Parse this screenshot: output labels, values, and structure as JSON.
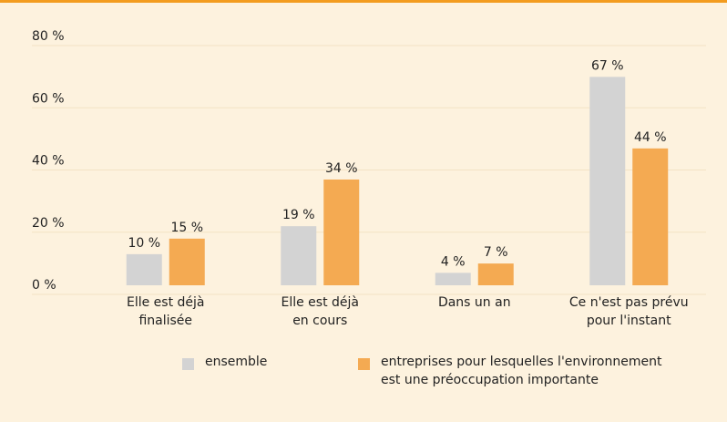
{
  "chart_data": {
    "type": "bar",
    "categories": [
      "Elle est déjà\nfinalisée",
      "Elle est déjà\nen cours",
      "Dans un an",
      "Ce n'est pas prévu\npour l'instant"
    ],
    "series": [
      {
        "name": "ensemble",
        "color": "#d3d3d3",
        "values": [
          10,
          19,
          4,
          67
        ],
        "value_labels": [
          "10 %",
          "19 %",
          "4 %",
          "67 %"
        ]
      },
      {
        "name": "entreprises pour lesquelles l'environnement\nest une préoccupation importante",
        "color": "#f4aa52",
        "values": [
          15,
          34,
          7,
          44
        ],
        "value_labels": [
          "15 %",
          "34 %",
          "7 %",
          "44 %"
        ]
      }
    ],
    "ylim": [
      0,
      80
    ],
    "yticks": [
      {
        "value": 0,
        "label": "0 %"
      },
      {
        "value": 20,
        "label": "20 %"
      },
      {
        "value": 40,
        "label": "40 %"
      },
      {
        "value": 60,
        "label": "60 %"
      },
      {
        "value": 80,
        "label": "80 %"
      }
    ],
    "grid": true
  }
}
